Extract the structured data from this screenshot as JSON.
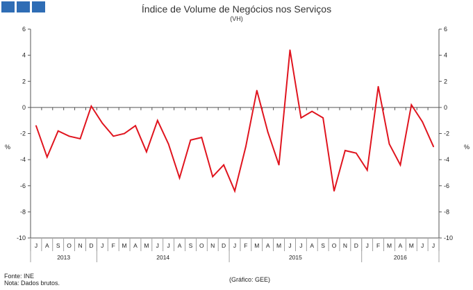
{
  "header": {
    "logo": {
      "icon": "ine-logo-icon",
      "color": "#2f6db5"
    },
    "title": "Índice de Volume de Negócios nos Serviços",
    "subtitle": "(VH)"
  },
  "footer": {
    "source": "Fonte: INE",
    "note": "Nota: Dados brutos.",
    "credit": "(Gráfico: GEE)"
  },
  "chart_data": {
    "type": "line",
    "title": "Índice de Volume de Negócios nos Serviços",
    "subtitle": "(VH)",
    "ylabel_left": "%",
    "ylabel_right": "%",
    "ylim": [
      -10,
      6
    ],
    "yticks": [
      6,
      4,
      2,
      0,
      -2,
      -4,
      -6,
      -8,
      -10
    ],
    "months": [
      "J",
      "A",
      "S",
      "O",
      "N",
      "D",
      "J",
      "F",
      "M",
      "A",
      "M",
      "J",
      "J",
      "A",
      "S",
      "O",
      "N",
      "D",
      "J",
      "F",
      "M",
      "A",
      "M",
      "J",
      "J",
      "A",
      "S",
      "O",
      "N",
      "D",
      "J",
      "F",
      "M",
      "A",
      "M",
      "J",
      "J"
    ],
    "years": [
      {
        "label": "2013",
        "start": 0,
        "count": 6
      },
      {
        "label": "2014",
        "start": 6,
        "count": 12
      },
      {
        "label": "2015",
        "start": 18,
        "count": 12
      },
      {
        "label": "2016",
        "start": 30,
        "count": 7
      }
    ],
    "series": [
      {
        "name": "VH",
        "color": "#e0141e",
        "values": [
          -1.4,
          -3.8,
          -1.8,
          -2.2,
          -2.4,
          0.1,
          -1.2,
          -2.2,
          -2.0,
          -1.4,
          -3.4,
          -1.0,
          -2.8,
          -5.4,
          -2.5,
          -2.3,
          -5.3,
          -4.4,
          -6.4,
          -3.0,
          1.3,
          -1.9,
          -4.4,
          4.4,
          -0.8,
          -0.3,
          -0.8,
          -6.4,
          -3.3,
          -3.5,
          -4.8,
          1.6,
          -2.8,
          -4.4,
          0.2,
          -1.1,
          -3.0
        ]
      }
    ]
  }
}
